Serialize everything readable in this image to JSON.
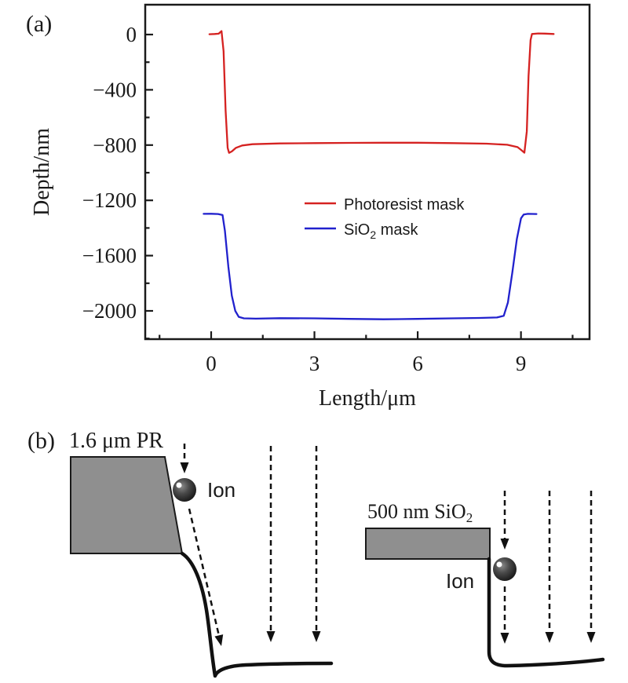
{
  "figure": {
    "panel_a_label": "(a)",
    "panel_b_label": "(b)"
  },
  "colors": {
    "photoresist_red": "#d52221",
    "sio2_blue": "#2121cd",
    "mask_gray": "#8f8f8f",
    "ink_black": "#111111"
  },
  "chart_data": {
    "type": "line",
    "title": "",
    "xlabel": "Length/μm",
    "ylabel": "Depth/nm",
    "xlim": [
      -2,
      11
    ],
    "ylim": [
      -2200,
      200
    ],
    "xticks_major": [
      0,
      3,
      6,
      9
    ],
    "xticks_minor": [
      -1.5,
      1.5,
      4.5,
      7.5,
      10.5
    ],
    "yticks_major": [
      0,
      -400,
      -800,
      -1200,
      -1600,
      -2000
    ],
    "yticks_minor": [
      -200,
      -600,
      -1000,
      -1400,
      -1800,
      -2200
    ],
    "grid": false,
    "legend_position": "inside center-left",
    "series": [
      {
        "name": "Photoresist mask",
        "color": "#d52221",
        "points": [
          [
            -0.05,
            2
          ],
          [
            0.1,
            4
          ],
          [
            0.22,
            6
          ],
          [
            0.3,
            25
          ],
          [
            0.36,
            -120
          ],
          [
            0.42,
            -550
          ],
          [
            0.48,
            -820
          ],
          [
            0.52,
            -856
          ],
          [
            0.6,
            -846
          ],
          [
            0.72,
            -820
          ],
          [
            0.9,
            -803
          ],
          [
            1.2,
            -794
          ],
          [
            2,
            -788
          ],
          [
            3,
            -786
          ],
          [
            4,
            -784
          ],
          [
            5,
            -783
          ],
          [
            6,
            -783
          ],
          [
            7,
            -786
          ],
          [
            8,
            -790
          ],
          [
            8.6,
            -798
          ],
          [
            8.9,
            -815
          ],
          [
            9.02,
            -838
          ],
          [
            9.1,
            -855
          ],
          [
            9.17,
            -700
          ],
          [
            9.22,
            -300
          ],
          [
            9.28,
            -40
          ],
          [
            9.32,
            4
          ],
          [
            9.5,
            8
          ],
          [
            9.7,
            7
          ],
          [
            9.95,
            4
          ]
        ]
      },
      {
        "name": "SiO2 mask",
        "name_pre": "SiO",
        "name_sub": "2",
        "name_post": " mask",
        "color": "#2121cd",
        "points": [
          [
            -0.22,
            -1298
          ],
          [
            0,
            -1297
          ],
          [
            0.2,
            -1299
          ],
          [
            0.33,
            -1306
          ],
          [
            0.4,
            -1420
          ],
          [
            0.5,
            -1680
          ],
          [
            0.6,
            -1890
          ],
          [
            0.7,
            -2000
          ],
          [
            0.8,
            -2043
          ],
          [
            0.95,
            -2054
          ],
          [
            1.3,
            -2056
          ],
          [
            2,
            -2053
          ],
          [
            3,
            -2054
          ],
          [
            4,
            -2058
          ],
          [
            5,
            -2061
          ],
          [
            6,
            -2058
          ],
          [
            7,
            -2054
          ],
          [
            7.8,
            -2051
          ],
          [
            8.3,
            -2048
          ],
          [
            8.5,
            -2036
          ],
          [
            8.62,
            -1940
          ],
          [
            8.75,
            -1720
          ],
          [
            8.88,
            -1480
          ],
          [
            9.0,
            -1330
          ],
          [
            9.08,
            -1302
          ],
          [
            9.2,
            -1298
          ],
          [
            9.45,
            -1299
          ]
        ]
      }
    ]
  },
  "diagram": {
    "left": {
      "mask_label": "1.6 μm PR",
      "ion_label": "Ion"
    },
    "right": {
      "mask_label_pre": "500 nm SiO",
      "mask_label_sub": "2",
      "ion_label": "Ion"
    }
  }
}
